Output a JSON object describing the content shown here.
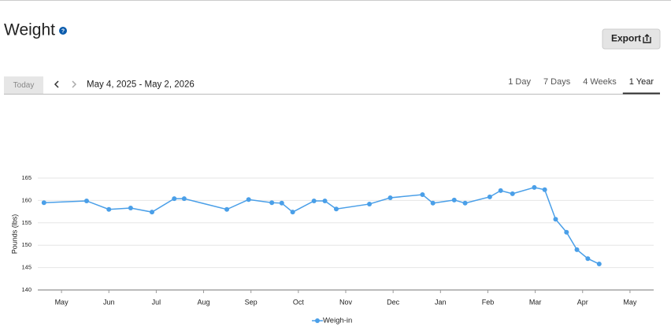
{
  "header": {
    "title": "Weight",
    "help": "?",
    "export": "Export"
  },
  "toolbar": {
    "today": "Today",
    "range": "May 4, 2025 - May 2, 2026",
    "tabs": [
      "1 Day",
      "7 Days",
      "4 Weeks",
      "1 Year"
    ],
    "selected_tab": 3
  },
  "chart_data": {
    "type": "line",
    "y_label": "Pounds (lbs)",
    "legend": "bottom",
    "grid": true,
    "x": [
      -0.37,
      0.53,
      1.0,
      1.46,
      1.91,
      2.38,
      2.59,
      3.49,
      3.95,
      4.44,
      4.65,
      4.88,
      5.33,
      5.56,
      5.8,
      6.5,
      6.94,
      7.62,
      7.84,
      8.29,
      8.52,
      9.04,
      9.27,
      9.52,
      9.98,
      10.2,
      10.43,
      10.66,
      10.88,
      11.11,
      11.35
    ],
    "series": [
      {
        "name": "Weigh-in",
        "color": "#4a9fe8",
        "values": [
          159.5,
          159.9,
          158.0,
          158.3,
          157.4,
          160.4,
          160.4,
          158.0,
          160.2,
          159.5,
          159.4,
          157.4,
          159.9,
          159.9,
          158.1,
          159.2,
          160.6,
          161.3,
          159.4,
          160.1,
          159.4,
          160.8,
          162.2,
          161.5,
          162.9,
          162.4,
          155.8,
          152.9,
          149.0,
          147.0,
          145.8
        ]
      }
    ],
    "xlim": [
      -0.5,
      12.5
    ],
    "xticks": [
      {
        "value": 0,
        "label": "May"
      },
      {
        "value": 1,
        "label": "Jun"
      },
      {
        "value": 2,
        "label": "Jul"
      },
      {
        "value": 3,
        "label": "Aug"
      },
      {
        "value": 4,
        "label": "Sep"
      },
      {
        "value": 5,
        "label": "Oct"
      },
      {
        "value": 6,
        "label": "Nov"
      },
      {
        "value": 7,
        "label": "Dec"
      },
      {
        "value": 8,
        "label": "Jan"
      },
      {
        "value": 9,
        "label": "Feb"
      },
      {
        "value": 10,
        "label": "Mar"
      },
      {
        "value": 11,
        "label": "Apr"
      },
      {
        "value": 12,
        "label": "May"
      }
    ],
    "ylim": [
      140,
      165
    ],
    "yticks": [
      140,
      145,
      150,
      155,
      160,
      165
    ]
  }
}
